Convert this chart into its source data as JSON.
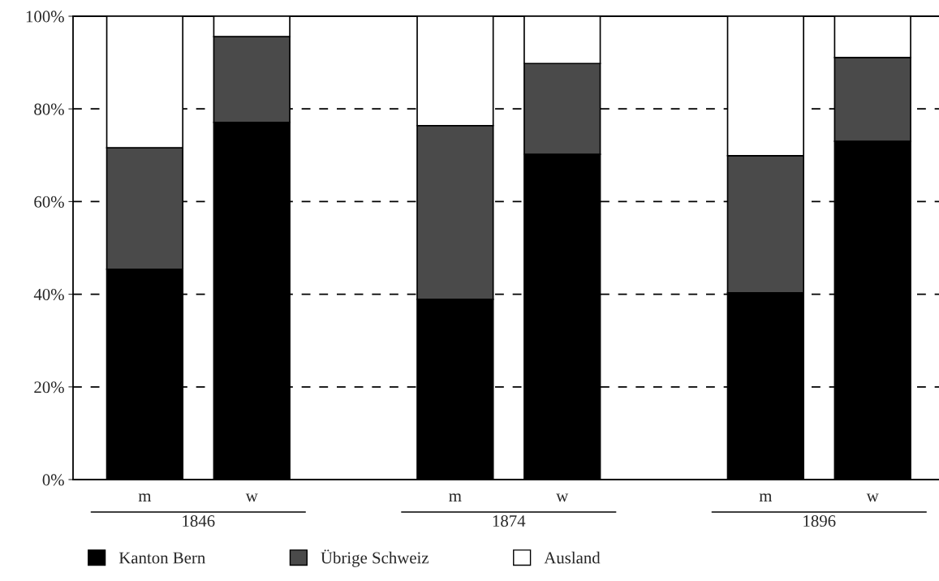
{
  "chart_data": {
    "type": "bar",
    "stacked": true,
    "categories": [
      "m",
      "w",
      "m",
      "w",
      "m",
      "w"
    ],
    "series": [
      {
        "name": "Kanton Bern",
        "color": "#000000",
        "values": [
          45.4,
          77.1,
          38.9,
          70.2,
          40.3,
          73.0
        ]
      },
      {
        "name": "Übrige Schweiz",
        "color": "#4a4a4a",
        "values": [
          26.2,
          18.5,
          37.5,
          19.6,
          29.6,
          18.1
        ]
      },
      {
        "name": "Ausland",
        "color": "#ffffff",
        "values": [
          28.4,
          4.4,
          23.6,
          10.2,
          30.1,
          8.9
        ]
      }
    ],
    "annotations": [
      "1846",
      "1874",
      "1896"
    ],
    "ylim": [
      0,
      100
    ],
    "yticks": [
      {
        "value": 0,
        "label": "0%"
      },
      {
        "value": 20,
        "label": "20%"
      },
      {
        "value": 40,
        "label": "40%"
      },
      {
        "value": 60,
        "label": "60%"
      },
      {
        "value": 80,
        "label": "80%"
      },
      {
        "value": 100,
        "label": "100%"
      }
    ],
    "grid": "y",
    "legend": "bottom left"
  }
}
